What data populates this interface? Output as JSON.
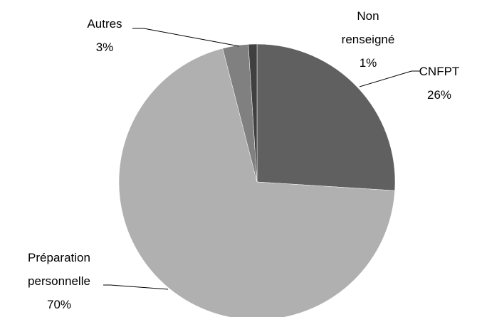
{
  "chart_data": {
    "type": "pie",
    "categories": [
      "CNFPT",
      "Préparation personnelle",
      "Autres",
      "Non renseigné"
    ],
    "values": [
      26,
      70,
      3,
      1
    ],
    "value_labels": [
      "26%",
      "70%",
      "3%",
      "1%"
    ],
    "colors": [
      "#606060",
      "#b0b0b0",
      "#808080",
      "#404040"
    ]
  }
}
